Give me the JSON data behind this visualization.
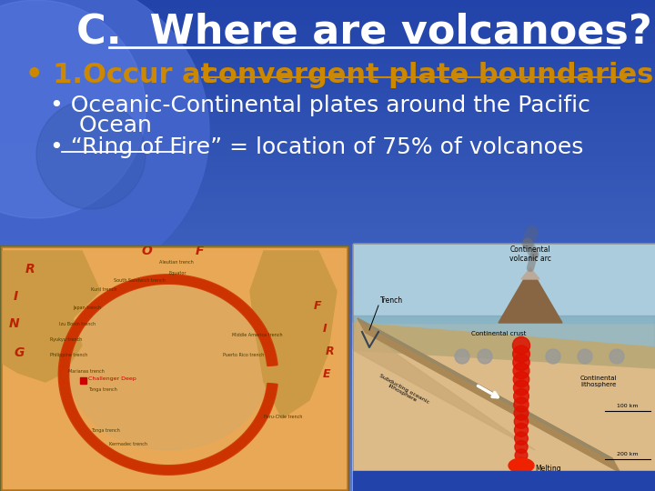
{
  "title": "C.  Where are volcanoes?",
  "title_color": "#FFFFFF",
  "title_fontsize": 32,
  "bullet1_prefix": "• 1.Occur at ",
  "bullet1_underlined": "convergent plate boundaries",
  "bullet1_color": "#CC8800",
  "bullet1_fontsize": 22,
  "sub_bullet1_line1": "• Oceanic-Continental plates around the Pacific",
  "sub_bullet1_line2": "    Ocean",
  "sub_bullet2": "• “Ring of Fire” = location of 75% of volcanoes",
  "sub_bullet_color": "#FFFFFF",
  "sub_bullet_fontsize": 18,
  "figsize": [
    7.2,
    5.4
  ],
  "dpi": 100,
  "bg_color_top": "#5577CC",
  "bg_color_bottom": "#2244AA",
  "globe_color": "#4466BB",
  "ring_of_fire_color": "#CC3300",
  "map_bg_color": "#E8A855",
  "map_land_color": "#DDAA66",
  "diag_bg_color": "#CCBBAA"
}
